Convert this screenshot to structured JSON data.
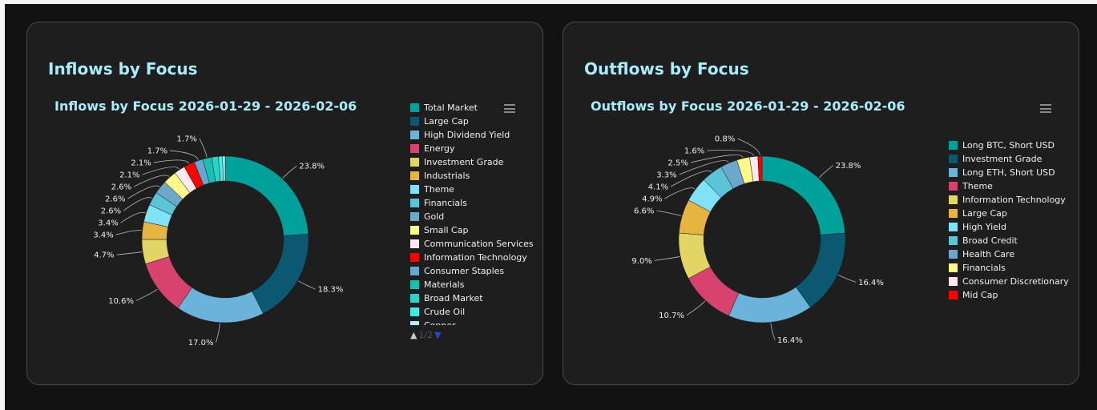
{
  "panels": [
    {
      "card_title": "Inflows by Focus",
      "chart_data": {
        "type": "pie",
        "variant": "donut",
        "title": "Inflows by Focus 2026-01-29 - 2026-02-06",
        "legend_position": "right",
        "legend_page": "1/2",
        "categories": [
          "Total Market",
          "Large Cap",
          "High Dividend Yield",
          "Energy",
          "Investment Grade",
          "Industrials",
          "Theme",
          "Financials",
          "Gold",
          "Small Cap",
          "Communication Services",
          "Information Technology",
          "Consumer Staples",
          "Materials",
          "Broad Market",
          "Crude Oil",
          "Copper"
        ],
        "values": [
          23.8,
          18.3,
          17.0,
          10.6,
          4.7,
          3.4,
          3.4,
          2.6,
          2.6,
          2.6,
          2.1,
          2.1,
          1.7,
          1.7,
          1.3,
          0.8,
          0.5
        ],
        "data_labels": [
          "23.8%",
          "18.3%",
          "17.0%",
          "10.6%",
          "4.7%",
          "3.4%",
          "3.4%",
          "2.6%",
          "2.6%",
          "2.6%",
          "2.1%",
          "2.1%",
          "1.7%",
          "1.7%",
          "",
          "",
          ""
        ],
        "colors": [
          "#00a19a",
          "#0b5872",
          "#6bb3da",
          "#d7426e",
          "#e3d466",
          "#e6b440",
          "#80e2f6",
          "#5bc4d6",
          "#6ba8cc",
          "#fdf98b",
          "#fbe9ef",
          "#ff0000",
          "#65a6d3",
          "#19bfb0",
          "#2ad3c6",
          "#40ebe2",
          "#b0f1f7"
        ]
      }
    },
    {
      "card_title": "Outflows by Focus",
      "chart_data": {
        "type": "pie",
        "variant": "donut",
        "title": "Outflows by Focus 2026-01-29 - 2026-02-06",
        "legend_position": "right",
        "categories": [
          "Long BTC, Short USD",
          "Investment Grade",
          "Long ETH, Short USD",
          "Theme",
          "Information Technology",
          "Large Cap",
          "High Yield",
          "Broad Credit",
          "Health Care",
          "Financials",
          "Consumer Discretionary",
          "Mid Cap"
        ],
        "values": [
          23.8,
          16.4,
          16.4,
          10.7,
          9.0,
          6.6,
          4.9,
          4.1,
          3.3,
          2.5,
          1.6,
          0.8
        ],
        "data_labels": [
          "23.8%",
          "16.4%",
          "16.4%",
          "10.7%",
          "9.0%",
          "6.6%",
          "4.9%",
          "4.1%",
          "3.3%",
          "2.5%",
          "1.6%",
          "0.8%"
        ],
        "colors": [
          "#00a19a",
          "#0b5872",
          "#6bb3da",
          "#d7426e",
          "#e3d466",
          "#e6b440",
          "#80e2f6",
          "#5bc4d6",
          "#6ba8cc",
          "#fdf98b",
          "#fbe9ef",
          "#ff0000"
        ]
      }
    }
  ]
}
